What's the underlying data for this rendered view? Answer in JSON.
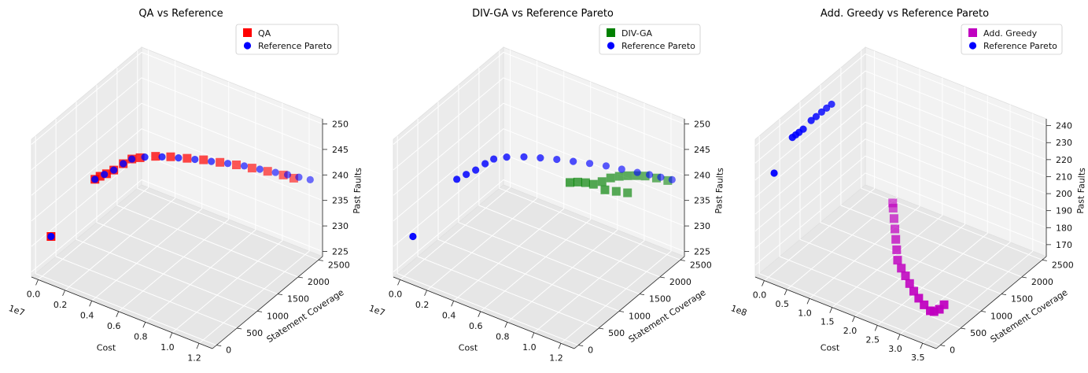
{
  "chart_data": [
    {
      "type": "scatter",
      "projection": "3d",
      "title": "QA vs Reference",
      "xlabel": "Cost",
      "ylabel": "Statement Coverage",
      "zlabel": "Past Faults",
      "x_offset_label": "1e7",
      "x_ticks": [
        "0.0",
        "0.2",
        "0.4",
        "0.6",
        "0.8",
        "1.0",
        "1.2"
      ],
      "x_tick_values": [
        0.0,
        0.2,
        0.4,
        0.6,
        0.8,
        1.0,
        1.2
      ],
      "y_ticks": [
        "0",
        "500",
        "1000",
        "1500",
        "2000",
        "2500"
      ],
      "y_tick_values": [
        0,
        500,
        1000,
        1500,
        2000,
        2500
      ],
      "z_ticks": [
        "225",
        "230",
        "235",
        "240",
        "245",
        "250"
      ],
      "z_tick_values": [
        225,
        230,
        235,
        240,
        245,
        250
      ],
      "xlim": [
        -0.05,
        1.3
      ],
      "ylim": [
        -100,
        2600
      ],
      "zlim": [
        224,
        251
      ],
      "grid": true,
      "legend_position": "top-right",
      "series": [
        {
          "name": "QA",
          "marker": "square",
          "color": "#ff0000",
          "points": [
            [
              0.02,
              150,
              231.0
            ],
            [
              0.18,
              700,
              240.2
            ],
            [
              0.2,
              760,
              240.6
            ],
            [
              0.23,
              820,
              241.0
            ],
            [
              0.26,
              900,
              241.5
            ],
            [
              0.3,
              1000,
              242.5
            ],
            [
              0.34,
              1080,
              243.3
            ],
            [
              0.38,
              1150,
              243.5
            ],
            [
              0.45,
              1300,
              243.5
            ],
            [
              0.52,
              1440,
              243.2
            ],
            [
              0.6,
              1580,
              242.8
            ],
            [
              0.68,
              1720,
              242.4
            ],
            [
              0.76,
              1860,
              241.8
            ],
            [
              0.84,
              2000,
              241.2
            ],
            [
              0.92,
              2120,
              240.6
            ],
            [
              1.0,
              2240,
              240.0
            ],
            [
              1.08,
              2360,
              239.3
            ],
            [
              1.14,
              2420,
              238.9
            ]
          ]
        },
        {
          "name": "Reference Pareto",
          "marker": "circle",
          "color": "#0000ff",
          "points": [
            [
              0.02,
              150,
              231.0
            ],
            [
              0.18,
              700,
              240.2
            ],
            [
              0.22,
              800,
              240.9
            ],
            [
              0.26,
              900,
              241.5
            ],
            [
              0.3,
              1000,
              242.5
            ],
            [
              0.34,
              1080,
              243.3
            ],
            [
              0.4,
              1200,
              243.5
            ],
            [
              0.48,
              1360,
              243.3
            ],
            [
              0.56,
              1500,
              243.0
            ],
            [
              0.64,
              1640,
              242.6
            ],
            [
              0.72,
              1780,
              242.1
            ],
            [
              0.8,
              1920,
              241.6
            ],
            [
              0.88,
              2060,
              241.0
            ],
            [
              0.96,
              2180,
              240.4
            ],
            [
              1.04,
              2300,
              239.8
            ],
            [
              1.1,
              2400,
              239.3
            ],
            [
              1.16,
              2480,
              238.9
            ],
            [
              1.22,
              2560,
              238.5
            ]
          ]
        }
      ]
    },
    {
      "type": "scatter",
      "projection": "3d",
      "title": "DIV-GA vs Reference Pareto",
      "xlabel": "Cost",
      "ylabel": "Statement Coverage",
      "zlabel": "Past Faults",
      "x_offset_label": "1e7",
      "x_ticks": [
        "0.0",
        "0.2",
        "0.4",
        "0.6",
        "0.8",
        "1.0",
        "1.2"
      ],
      "x_tick_values": [
        0.0,
        0.2,
        0.4,
        0.6,
        0.8,
        1.0,
        1.2
      ],
      "y_ticks": [
        "0",
        "500",
        "1000",
        "1500",
        "2000",
        "2500"
      ],
      "y_tick_values": [
        0,
        500,
        1000,
        1500,
        2000,
        2500
      ],
      "z_ticks": [
        "225",
        "230",
        "235",
        "240",
        "245",
        "250"
      ],
      "z_tick_values": [
        225,
        230,
        235,
        240,
        245,
        250
      ],
      "xlim": [
        -0.05,
        1.3
      ],
      "ylim": [
        -100,
        2600
      ],
      "zlim": [
        224,
        251
      ],
      "grid": true,
      "legend_position": "top-right",
      "series": [
        {
          "name": "DIV-GA",
          "marker": "square",
          "color": "#008000",
          "points": [
            [
              0.72,
              1700,
              238.5
            ],
            [
              0.76,
              1760,
              238.6
            ],
            [
              0.8,
              1820,
              238.5
            ],
            [
              0.84,
              1880,
              238.2
            ],
            [
              0.88,
              1960,
              238.6
            ],
            [
              0.92,
              2040,
              239.2
            ],
            [
              0.96,
              2120,
              239.4
            ],
            [
              1.0,
              2200,
              239.4
            ],
            [
              1.04,
              2280,
              239.3
            ],
            [
              1.08,
              2360,
              239.1
            ],
            [
              1.14,
              2440,
              238.8
            ],
            [
              1.2,
              2520,
              238.4
            ],
            [
              0.92,
              1900,
              237.8
            ],
            [
              0.98,
              1980,
              237.6
            ],
            [
              1.04,
              2060,
              237.4
            ]
          ]
        },
        {
          "name": "Reference Pareto",
          "marker": "circle",
          "color": "#0000ff",
          "points": [
            [
              0.02,
              150,
              231.0
            ],
            [
              0.18,
              700,
              240.2
            ],
            [
              0.22,
              800,
              240.9
            ],
            [
              0.26,
              900,
              241.5
            ],
            [
              0.3,
              1000,
              242.5
            ],
            [
              0.34,
              1080,
              243.3
            ],
            [
              0.4,
              1200,
              243.5
            ],
            [
              0.48,
              1360,
              243.3
            ],
            [
              0.56,
              1500,
              243.0
            ],
            [
              0.64,
              1640,
              242.6
            ],
            [
              0.72,
              1780,
              242.1
            ],
            [
              0.8,
              1920,
              241.6
            ],
            [
              0.88,
              2060,
              241.0
            ],
            [
              0.96,
              2180,
              240.4
            ],
            [
              1.04,
              2300,
              239.8
            ],
            [
              1.1,
              2400,
              239.3
            ],
            [
              1.16,
              2480,
              238.9
            ],
            [
              1.22,
              2560,
              238.5
            ]
          ]
        }
      ]
    },
    {
      "type": "scatter",
      "projection": "3d",
      "title": "Add. Greedy vs Reference Pareto",
      "xlabel": "Cost",
      "ylabel": "Statement Coverage",
      "zlabel": "Past Faults",
      "x_offset_label": "1e8",
      "x_ticks": [
        "0.0",
        "0.5",
        "1.0",
        "1.5",
        "2.0",
        "2.5",
        "3.0",
        "3.5"
      ],
      "x_tick_values": [
        0.0,
        0.5,
        1.0,
        1.5,
        2.0,
        2.5,
        3.0,
        3.5
      ],
      "y_ticks": [
        "0",
        "500",
        "1000",
        "1500",
        "2000",
        "2500"
      ],
      "y_tick_values": [
        0,
        500,
        1000,
        1500,
        2000,
        2500
      ],
      "z_ticks": [
        "170",
        "180",
        "190",
        "200",
        "210",
        "220",
        "230",
        "240"
      ],
      "z_tick_values": [
        170,
        180,
        190,
        200,
        210,
        220,
        230,
        240
      ],
      "xlim": [
        -0.2,
        3.8
      ],
      "ylim": [
        -100,
        2600
      ],
      "zlim": [
        163,
        244
      ],
      "grid": true,
      "legend_position": "top-right",
      "series": [
        {
          "name": "Add. Greedy",
          "marker": "square",
          "color": "#c000c0",
          "points": [
            [
              0.9,
              2050,
              175.0
            ],
            [
              1.0,
              1950,
              175.0
            ],
            [
              1.2,
              1750,
              175.0
            ],
            [
              1.4,
              1550,
              175.0
            ],
            [
              1.6,
              1350,
              175.0
            ],
            [
              1.8,
              1150,
              175.0
            ],
            [
              2.0,
              950,
              175.0
            ],
            [
              2.2,
              820,
              175.0
            ],
            [
              2.4,
              700,
              175.0
            ],
            [
              2.6,
              580,
              175.0
            ],
            [
              2.8,
              460,
              175.0
            ],
            [
              3.0,
              360,
              175.0
            ],
            [
              3.2,
              270,
              175.0
            ],
            [
              3.4,
              200,
              175.0
            ],
            [
              3.5,
              180,
              176.0
            ],
            [
              3.6,
              200,
              178.0
            ],
            [
              3.65,
              260,
              180.0
            ]
          ]
        },
        {
          "name": "Reference Pareto",
          "marker": "circle",
          "color": "#0000ff",
          "points": [
            [
              0.02,
              120,
              222.0
            ],
            [
              0.08,
              500,
              236.0
            ],
            [
              0.1,
              560,
              236.5
            ],
            [
              0.12,
              620,
              237.0
            ],
            [
              0.14,
              700,
              237.5
            ],
            [
              0.18,
              850,
              240.0
            ],
            [
              0.2,
              950,
              240.5
            ],
            [
              0.23,
              1050,
              241.5
            ],
            [
              0.25,
              1150,
              242.0
            ],
            [
              0.27,
              1250,
              242.5
            ]
          ]
        }
      ]
    }
  ]
}
